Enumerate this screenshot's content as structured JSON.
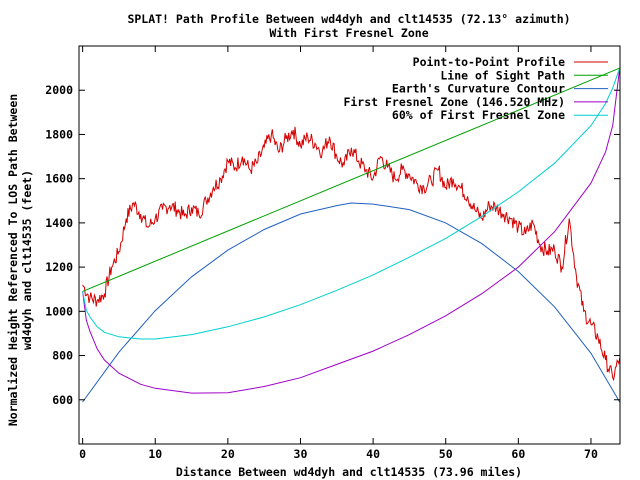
{
  "chart_data": {
    "type": "line",
    "title": "SPLAT! Path Profile Between wd4dyh and clt14535 (72.13° azimuth)",
    "subtitle": "With First Fresnel Zone",
    "xlabel": "Distance Between wd4dyh and clt14535 (73.96 miles)",
    "ylabel_line1": "Normalized Height Referenced To LOS Path Between",
    "ylabel_line2": "wd4dyh and clt14535 (feet)",
    "xlim": [
      -0.5,
      74
    ],
    "ylim": [
      400,
      2200
    ],
    "xticks": [
      0,
      10,
      20,
      30,
      40,
      50,
      60,
      70
    ],
    "yticks": [
      600,
      800,
      1000,
      1200,
      1400,
      1600,
      1800,
      2000
    ],
    "grid": false,
    "legend_position": "top-right",
    "series": [
      {
        "name": "Point-to-Point Profile",
        "color": "#d40000",
        "x": [
          0,
          1,
          2,
          3,
          4,
          5,
          6,
          7,
          8,
          9,
          10,
          11,
          12,
          13,
          14,
          15,
          16,
          17,
          18,
          19,
          20,
          21,
          22,
          23,
          24,
          25,
          26,
          27,
          28,
          29,
          30,
          31,
          32,
          33,
          34,
          35,
          36,
          37,
          38,
          39,
          40,
          41,
          42,
          43,
          44,
          45,
          46,
          47,
          48,
          49,
          50,
          51,
          52,
          53,
          54,
          55,
          56,
          57,
          58,
          59,
          60,
          61,
          62,
          63,
          64,
          65,
          66,
          67,
          68,
          69,
          70,
          71,
          72,
          73,
          73.96
        ],
        "values": [
          1120,
          1060,
          1050,
          1080,
          1200,
          1270,
          1420,
          1490,
          1440,
          1380,
          1420,
          1460,
          1480,
          1460,
          1430,
          1470,
          1440,
          1500,
          1560,
          1600,
          1680,
          1650,
          1700,
          1640,
          1670,
          1740,
          1800,
          1720,
          1780,
          1820,
          1750,
          1790,
          1760,
          1720,
          1790,
          1700,
          1660,
          1740,
          1680,
          1640,
          1600,
          1700,
          1650,
          1600,
          1640,
          1620,
          1580,
          1560,
          1590,
          1640,
          1560,
          1600,
          1560,
          1520,
          1460,
          1420,
          1480,
          1470,
          1440,
          1420,
          1380,
          1350,
          1400,
          1300,
          1270,
          1280,
          1200,
          1420,
          1160,
          1000,
          940,
          880,
          780,
          700,
          790
        ]
      },
      {
        "name": "Line of Sight Path",
        "color": "#00a000",
        "x": [
          0,
          73.96
        ],
        "values": [
          1090,
          2100
        ]
      },
      {
        "name": "Earth's Curvature Contour",
        "color": "#2060c0",
        "x": [
          0,
          5,
          10,
          15,
          20,
          25,
          30,
          35,
          36.98,
          40,
          45,
          50,
          55,
          60,
          65,
          70,
          73.96
        ],
        "values": [
          590,
          815,
          1003,
          1156,
          1277,
          1370,
          1440,
          1478,
          1490,
          1485,
          1460,
          1400,
          1306,
          1180,
          1020,
          810,
          590
        ]
      },
      {
        "name": "First Fresnel Zone (146.520 MHz)",
        "color": "#a000c8",
        "x": [
          0,
          0.5,
          1,
          2,
          3,
          5,
          8,
          10,
          15,
          20,
          25,
          30,
          35,
          40,
          45,
          50,
          55,
          60,
          65,
          70,
          72,
          73,
          73.96
        ],
        "values": [
          1090,
          960,
          910,
          830,
          780,
          720,
          670,
          652,
          630,
          632,
          660,
          700,
          760,
          820,
          895,
          980,
          1080,
          1200,
          1360,
          1580,
          1720,
          1840,
          2100
        ]
      },
      {
        "name": "60% of First Fresnel Zone",
        "color": "#00d0d0",
        "x": [
          0,
          0.5,
          1,
          2,
          3,
          5,
          8,
          10,
          15,
          20,
          25,
          30,
          35,
          40,
          45,
          50,
          55,
          60,
          65,
          70,
          72,
          73,
          73.96
        ],
        "values": [
          1090,
          1005,
          975,
          930,
          905,
          885,
          875,
          875,
          895,
          930,
          975,
          1030,
          1095,
          1165,
          1245,
          1330,
          1430,
          1540,
          1670,
          1840,
          1940,
          2010,
          2100
        ]
      }
    ]
  }
}
